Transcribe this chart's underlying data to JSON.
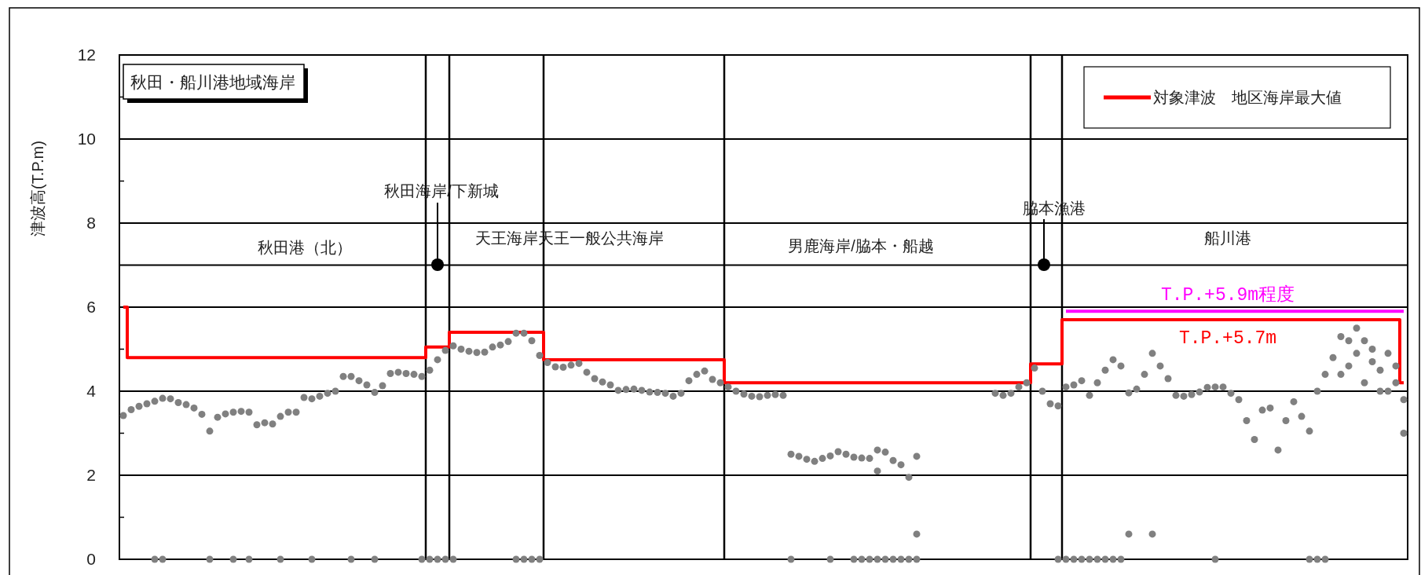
{
  "chart_data": {
    "type": "scatter",
    "title": "秋田・船川港地域海岸",
    "ylabel": "津波高(T.P.m)",
    "categories": [
      null,
      null,
      null,
      null,
      null,
      null,
      null,
      null,
      null,
      null,
      null,
      null,
      null,
      null,
      null,
      null,
      null,
      null,
      null,
      null,
      null,
      null,
      null,
      null,
      null,
      null,
      null,
      null,
      null,
      null,
      null,
      null,
      null,
      null,
      null,
      null,
      null,
      null,
      null,
      null,
      null,
      null,
      null,
      null,
      null,
      null,
      null,
      null,
      null,
      null,
      null,
      null,
      null,
      null,
      null,
      null,
      null,
      null,
      null,
      null,
      null,
      null,
      null,
      null,
      null,
      null,
      null,
      null,
      null,
      null,
      null,
      null,
      null,
      null,
      null,
      null,
      null,
      null,
      null,
      null,
      null,
      null,
      null,
      null,
      null,
      null,
      null,
      null,
      null,
      null,
      null,
      null,
      null,
      null,
      null,
      null,
      null,
      null,
      null,
      null,
      null,
      null,
      null,
      null,
      null,
      null,
      null,
      null,
      null,
      null,
      null,
      null,
      null,
      null,
      null,
      null,
      null,
      null,
      null,
      null,
      null,
      null,
      null,
      null,
      null,
      null,
      null,
      null,
      null,
      null,
      null,
      null,
      null,
      null,
      null,
      null,
      null,
      null,
      null,
      null,
      null,
      null,
      null,
      null,
      null,
      null,
      null,
      null,
      null,
      null,
      null,
      null,
      null,
      null,
      null,
      null,
      null,
      null,
      null,
      null,
      null,
      null,
      null,
      null
    ],
    "series": [
      {
        "name": "対象津波　地区海岸最大値",
        "type": "step",
        "color": "#ff0000",
        "values": [
          6,
          4.8,
          4.8,
          4.8,
          4.8,
          4.8,
          4.8,
          4.8,
          4.8,
          4.8,
          4.8,
          4.8,
          4.8,
          4.8,
          4.8,
          4.8,
          4.8,
          4.8,
          4.8,
          4.8,
          4.8,
          4.8,
          4.8,
          4.8,
          4.8,
          4.8,
          4.8,
          4.8,
          4.8,
          4.8,
          4.8,
          4.8,
          4.8,
          4.8,
          4.8,
          4.8,
          4.8,
          4.8,
          4.8,
          5.05,
          5.05,
          5.05,
          5.4,
          5.4,
          5.4,
          5.4,
          5.4,
          5.4,
          5.4,
          5.4,
          5.4,
          5.4,
          5.4,
          5.4,
          4.75,
          4.75,
          4.75,
          4.75,
          4.75,
          4.75,
          4.75,
          4.75,
          4.75,
          4.75,
          4.75,
          4.75,
          4.75,
          4.75,
          4.75,
          4.75,
          4.75,
          4.75,
          4.75,
          4.75,
          4.75,
          4.75,
          4.75,
          4.2,
          4.2,
          4.2,
          4.2,
          4.2,
          4.2,
          4.2,
          4.2,
          4.2,
          4.2,
          4.2,
          4.2,
          4.2,
          4.2,
          4.2,
          4.2,
          4.2,
          4.2,
          4.2,
          4.2,
          4.2,
          4.2,
          4.2,
          4.2,
          4.2,
          4.2,
          4.2,
          4.2,
          4.2,
          4.2,
          4.2,
          4.2,
          4.2,
          4.2,
          4.2,
          4.2,
          4.2,
          4.2,
          4.2,
          4.65,
          4.65,
          4.65,
          4.65,
          5.7,
          5.7,
          5.7,
          5.7,
          5.7,
          5.7,
          5.7,
          5.7,
          5.7,
          5.7,
          5.7,
          5.7,
          5.7,
          5.7,
          5.7,
          5.7,
          5.7,
          5.7,
          5.7,
          5.7,
          5.7,
          5.7,
          5.7,
          5.7,
          5.7,
          5.7,
          5.7,
          5.7,
          5.7,
          5.7,
          5.7,
          5.7,
          5.7,
          5.7,
          5.7,
          5.7,
          5.7,
          5.7,
          5.7,
          5.7,
          5.7,
          5.7,
          5.7,
          4.2
        ]
      },
      {
        "type": "line",
        "color": "#ff00ff",
        "values": [
          null,
          null,
          null,
          null,
          null,
          null,
          null,
          null,
          null,
          null,
          null,
          null,
          null,
          null,
          null,
          null,
          null,
          null,
          null,
          null,
          null,
          null,
          null,
          null,
          null,
          null,
          null,
          null,
          null,
          null,
          null,
          null,
          null,
          null,
          null,
          null,
          null,
          null,
          null,
          null,
          null,
          null,
          null,
          null,
          null,
          null,
          null,
          null,
          null,
          null,
          null,
          null,
          null,
          null,
          null,
          null,
          null,
          null,
          null,
          null,
          null,
          null,
          null,
          null,
          null,
          null,
          null,
          null,
          null,
          null,
          null,
          null,
          null,
          null,
          null,
          null,
          null,
          null,
          null,
          null,
          null,
          null,
          null,
          null,
          null,
          null,
          null,
          null,
          null,
          null,
          null,
          null,
          null,
          null,
          null,
          null,
          null,
          null,
          null,
          null,
          null,
          null,
          null,
          null,
          null,
          null,
          null,
          null,
          null,
          null,
          null,
          null,
          null,
          null,
          null,
          null,
          null,
          null,
          null,
          null,
          5.9,
          5.9,
          5.9,
          5.9,
          5.9,
          5.9,
          5.9,
          5.9,
          5.9,
          5.9,
          5.9,
          5.9,
          5.9,
          5.9,
          5.9,
          5.9,
          5.9,
          5.9,
          5.9,
          5.9,
          5.9,
          5.9,
          5.9,
          5.9,
          5.9,
          5.9,
          5.9,
          5.9,
          5.9,
          5.9,
          5.9,
          5.9,
          5.9,
          5.9,
          5.9,
          5.9,
          5.9,
          5.9,
          5.9,
          5.9,
          5.9,
          5.9,
          5.9,
          5.9
        ]
      },
      {
        "color": "#808080",
        "values": [
          3.42,
          3.56,
          3.64,
          3.7,
          3.76,
          3.83,
          3.82,
          3.73,
          3.68,
          3.6,
          3.45,
          3.05,
          3.38,
          3.46,
          3.5,
          3.52,
          3.5,
          3.2,
          3.25,
          3.22,
          3.4,
          3.5,
          3.5,
          3.85,
          3.82,
          3.88,
          3.95,
          4.0,
          4.35,
          4.35,
          4.25,
          4.15,
          3.97,
          4.13,
          4.42,
          4.45,
          4.42,
          4.4,
          4.35,
          4.5,
          4.75,
          4.97,
          5.08,
          5.0,
          4.95,
          4.92,
          4.93,
          5.05,
          5.1,
          5.18,
          5.38,
          5.38,
          5.2,
          4.85,
          4.68,
          4.58,
          4.57,
          4.62,
          4.66,
          4.45,
          4.3,
          4.22,
          4.15,
          4.02,
          4.04,
          4.05,
          4.02,
          3.98,
          3.97,
          3.95,
          3.88,
          3.95,
          4.25,
          4.4,
          4.48,
          4.28,
          4.2,
          4.1,
          4.0,
          3.93,
          3.88,
          3.87,
          3.9,
          3.92,
          3.9,
          2.5,
          2.45,
          2.38,
          2.33,
          2.4,
          2.46,
          2.56,
          2.5,
          2.43,
          2.41,
          2.4,
          2.6,
          2.55,
          2.35,
          2.25,
          1.95,
          2.45,
          null,
          null,
          null,
          null,
          null,
          null,
          null,
          null,
          null,
          3.95,
          3.9,
          3.95,
          4.1,
          4.2,
          4.55,
          4.0,
          3.7,
          3.65,
          4.1,
          4.15,
          4.25,
          3.9,
          4.2,
          4.5,
          4.75,
          4.6,
          3.96,
          4.05,
          4.4,
          4.9,
          4.6,
          4.3,
          3.9,
          3.88,
          3.92,
          3.98,
          4.09,
          4.1,
          4.1,
          3.95,
          3.8,
          3.3,
          2.85,
          3.55,
          3.6,
          2.6,
          3.3,
          3.75,
          3.4,
          3.05,
          4.0,
          4.4,
          4.8,
          5.3,
          5.2,
          4.9,
          5.2,
          4.7,
          4.0,
          4.9,
          4.2,
          3.8
        ]
      },
      {
        "color": "#808080",
        "values": [
          null,
          null,
          null,
          null,
          null,
          null,
          null,
          null,
          null,
          null,
          null,
          null,
          null,
          null,
          null,
          null,
          null,
          null,
          null,
          null,
          null,
          null,
          null,
          null,
          null,
          null,
          null,
          null,
          null,
          null,
          null,
          null,
          null,
          null,
          null,
          null,
          null,
          null,
          null,
          null,
          null,
          null,
          null,
          null,
          null,
          null,
          null,
          null,
          null,
          null,
          null,
          null,
          null,
          null,
          null,
          null,
          null,
          null,
          null,
          null,
          null,
          null,
          null,
          null,
          null,
          null,
          null,
          null,
          null,
          null,
          null,
          null,
          null,
          null,
          null,
          null,
          null,
          null,
          null,
          null,
          null,
          null,
          null,
          null,
          null,
          null,
          null,
          null,
          null,
          null,
          null,
          null,
          null,
          null,
          null,
          null,
          2.1,
          null,
          null,
          null,
          null,
          0.6,
          null,
          null,
          null,
          null,
          null,
          null,
          null,
          null,
          null,
          null,
          null,
          null,
          null,
          null,
          null,
          null,
          null,
          null,
          null,
          null,
          null,
          null,
          null,
          null,
          null,
          null,
          0.6,
          null,
          null,
          0.6,
          null,
          null,
          null,
          null,
          null,
          null,
          null,
          null,
          null,
          null,
          null,
          null,
          null,
          null,
          null,
          null,
          null,
          null,
          null,
          null,
          null,
          null,
          null,
          4.4,
          4.6,
          5.5,
          4.2,
          5.0,
          4.5,
          4.0,
          4.6,
          3.0
        ]
      },
      {
        "color": "#808080",
        "values": [
          null,
          null,
          null,
          null,
          0,
          0,
          null,
          null,
          null,
          null,
          null,
          0,
          null,
          null,
          0,
          null,
          0,
          null,
          null,
          null,
          0,
          null,
          null,
          null,
          0,
          null,
          null,
          null,
          null,
          0,
          null,
          null,
          0,
          null,
          null,
          null,
          null,
          null,
          0,
          0,
          0,
          0,
          0,
          null,
          null,
          null,
          null,
          null,
          null,
          null,
          0,
          0,
          0,
          0,
          null,
          null,
          null,
          null,
          null,
          null,
          null,
          null,
          null,
          null,
          null,
          null,
          null,
          null,
          null,
          null,
          null,
          null,
          null,
          null,
          null,
          null,
          null,
          null,
          null,
          null,
          null,
          null,
          null,
          null,
          null,
          0,
          null,
          null,
          null,
          null,
          0,
          null,
          null,
          0,
          0,
          0,
          0,
          0,
          0,
          0,
          0,
          0,
          null,
          null,
          null,
          null,
          null,
          null,
          null,
          null,
          null,
          null,
          null,
          null,
          null,
          null,
          null,
          null,
          null,
          0,
          0,
          0,
          0,
          0,
          0,
          0,
          0,
          0,
          null,
          null,
          null,
          null,
          null,
          null,
          null,
          null,
          null,
          null,
          null,
          0,
          null,
          null,
          null,
          null,
          null,
          null,
          null,
          null,
          null,
          null,
          null,
          0,
          0,
          0,
          null,
          null,
          null,
          null,
          null,
          null,
          null,
          null,
          null,
          null
        ]
      }
    ],
    "ylim": [
      0,
      12
    ],
    "yticks": [
      0,
      {
        "value": 1,
        "label": null
      },
      2,
      {
        "value": 3,
        "label": null
      },
      4,
      {
        "value": 5,
        "label": null
      },
      6,
      8,
      {
        "value": 9,
        "label": null
      },
      10,
      {
        "value": 11,
        "label": null
      },
      12
    ],
    "ref_lines": [
      {
        "axis": "y",
        "value": 7,
        "color": "#000000"
      }
    ],
    "annotations": [
      "秋田港（北）",
      "秋田海岸/下新城",
      "天王海岸天王一般公共海岸",
      "男鹿海岸/脇本・船越",
      "脇本漁港",
      "船川港",
      {
        "text": "T.P.+5.9m程度",
        "y": 5.9
      },
      {
        "text": "T.P.+5.7m",
        "y": 5.7
      }
    ],
    "grid": "y",
    "legend": "top right"
  }
}
